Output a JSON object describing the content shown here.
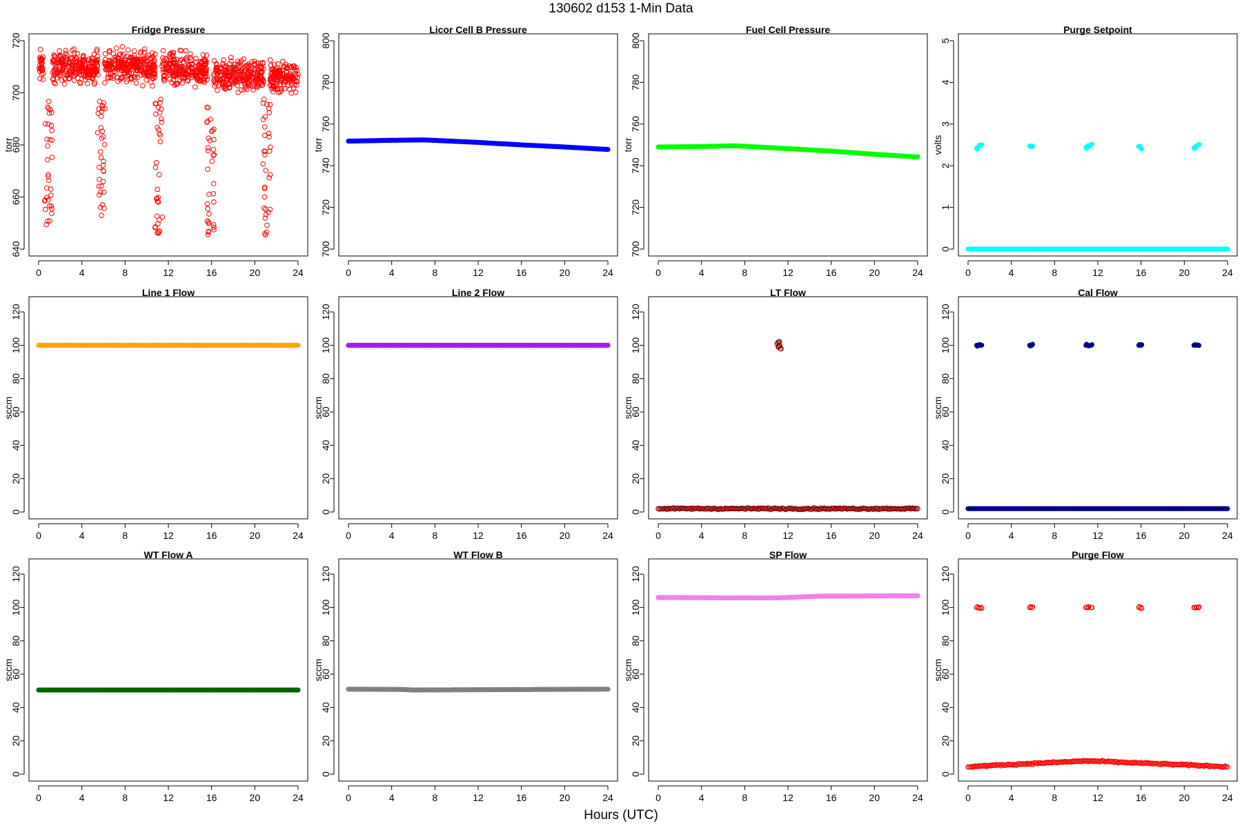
{
  "title": "130602   d153   1-Min Data",
  "xlabel": "Hours (UTC)",
  "chart_data": [
    {
      "type": "scatter",
      "title": "Fridge Pressure",
      "ylabel": "torr",
      "color": "#ff0000",
      "style": "open",
      "xlim": [
        0,
        24
      ],
      "ylim": [
        640,
        720
      ],
      "xticks": [
        0,
        4,
        8,
        12,
        16,
        20,
        24
      ],
      "yticks": [
        640,
        660,
        680,
        700,
        720
      ],
      "pattern": "fridge",
      "series": [
        {
          "name": "",
          "x": [],
          "y": []
        }
      ]
    },
    {
      "type": "scatter",
      "title": "Licor Cell B Pressure",
      "ylabel": "torr",
      "color": "#0000ff",
      "style": "filled",
      "xlim": [
        0,
        24
      ],
      "ylim": [
        700,
        800
      ],
      "xticks": [
        0,
        4,
        8,
        12,
        16,
        20,
        24
      ],
      "yticks": [
        700,
        720,
        740,
        760,
        780,
        800
      ],
      "series": [
        {
          "name": "",
          "x": [
            0,
            4,
            7,
            12,
            16,
            20,
            24
          ],
          "y": [
            751.8,
            752.2,
            752.4,
            751.2,
            750,
            749,
            747.8
          ]
        }
      ]
    },
    {
      "type": "scatter",
      "title": "Fuel Cell Pressure",
      "ylabel": "torr",
      "color": "#00ff00",
      "style": "filled",
      "xlim": [
        0,
        24
      ],
      "ylim": [
        700,
        800
      ],
      "xticks": [
        0,
        4,
        8,
        12,
        16,
        20,
        24
      ],
      "yticks": [
        700,
        720,
        740,
        760,
        780,
        800
      ],
      "series": [
        {
          "name": "",
          "x": [
            0,
            4,
            7,
            12,
            16,
            20,
            24
          ],
          "y": [
            749,
            749.2,
            749.6,
            748.2,
            747,
            745.5,
            744.2
          ]
        }
      ]
    },
    {
      "type": "scatter",
      "title": "Purge Setpoint",
      "ylabel": "volts",
      "color": "#00ffff",
      "style": "filled",
      "xlim": [
        0,
        24
      ],
      "ylim": [
        0,
        5
      ],
      "xticks": [
        0,
        4,
        8,
        12,
        16,
        20,
        24
      ],
      "yticks": [
        0,
        1,
        2,
        3,
        4,
        5
      ],
      "series": [
        {
          "name": "",
          "x": [
            0,
            24
          ],
          "y": [
            0,
            0
          ]
        },
        {
          "name": "",
          "x": [
            0.8,
            1.0,
            1.2,
            5.7,
            5.9,
            10.9,
            11.1,
            11.4,
            15.8,
            16.0,
            20.9,
            21.1,
            21.3
          ],
          "y": [
            2.42,
            2.47,
            2.5,
            2.47,
            2.45,
            2.44,
            2.48,
            2.5,
            2.46,
            2.42,
            2.43,
            2.47,
            2.5
          ]
        }
      ]
    },
    {
      "type": "scatter",
      "title": "Line 1 Flow",
      "ylabel": "sccm",
      "color": "#ffa500",
      "style": "filled",
      "xlim": [
        0,
        24
      ],
      "ylim": [
        0,
        125
      ],
      "xticks": [
        0,
        4,
        8,
        12,
        16,
        20,
        24
      ],
      "yticks": [
        0,
        20,
        40,
        60,
        80,
        100,
        120
      ],
      "series": [
        {
          "name": "",
          "x": [
            0,
            24
          ],
          "y": [
            100,
            100
          ]
        }
      ]
    },
    {
      "type": "scatter",
      "title": "Line 2 Flow",
      "ylabel": "sccm",
      "color": "#a020f0",
      "style": "filled",
      "xlim": [
        0,
        24
      ],
      "ylim": [
        0,
        125
      ],
      "xticks": [
        0,
        4,
        8,
        12,
        16,
        20,
        24
      ],
      "yticks": [
        0,
        20,
        40,
        60,
        80,
        100,
        120
      ],
      "series": [
        {
          "name": "",
          "x": [
            0,
            24
          ],
          "y": [
            100,
            100
          ]
        }
      ]
    },
    {
      "type": "scatter",
      "title": "LT Flow",
      "ylabel": "sccm",
      "color": "#8b0000",
      "style": "open",
      "xlim": [
        0,
        24
      ],
      "ylim": [
        0,
        125
      ],
      "xticks": [
        0,
        4,
        8,
        12,
        16,
        20,
        24
      ],
      "yticks": [
        0,
        20,
        40,
        60,
        80,
        100,
        120
      ],
      "series": [
        {
          "name": "",
          "x": [
            0,
            24
          ],
          "y": [
            2,
            2
          ]
        },
        {
          "name": "",
          "x": [
            11.0,
            11.1,
            11.2,
            11.3,
            11.15
          ],
          "y": [
            101,
            99,
            100,
            98,
            102
          ]
        }
      ]
    },
    {
      "type": "scatter",
      "title": "Cal Flow",
      "ylabel": "sccm",
      "color": "#00008b",
      "style": "filled",
      "xlim": [
        0,
        24
      ],
      "ylim": [
        0,
        125
      ],
      "xticks": [
        0,
        4,
        8,
        12,
        16,
        20,
        24
      ],
      "yticks": [
        0,
        20,
        40,
        60,
        80,
        100,
        120
      ],
      "series": [
        {
          "name": "",
          "x": [
            0,
            24
          ],
          "y": [
            2,
            2
          ]
        },
        {
          "name": "",
          "x": [
            0.8,
            1.0,
            1.2,
            5.7,
            5.9,
            10.9,
            11.1,
            11.4,
            15.8,
            16.0,
            20.9,
            21.1,
            21.3
          ],
          "y": [
            100,
            100,
            100,
            100,
            100,
            100,
            100,
            100,
            100,
            100,
            100,
            100,
            100
          ]
        }
      ]
    },
    {
      "type": "scatter",
      "title": "WT Flow A",
      "ylabel": "sccm",
      "color": "#006400",
      "style": "filled",
      "xlim": [
        0,
        24
      ],
      "ylim": [
        0,
        125
      ],
      "xticks": [
        0,
        4,
        8,
        12,
        16,
        20,
        24
      ],
      "yticks": [
        0,
        20,
        40,
        60,
        80,
        100,
        120
      ],
      "series": [
        {
          "name": "",
          "x": [
            0,
            24
          ],
          "y": [
            50.5,
            50.5
          ]
        }
      ]
    },
    {
      "type": "scatter",
      "title": "WT Flow B",
      "ylabel": "sccm",
      "color": "#808080",
      "style": "filled",
      "xlim": [
        0,
        24
      ],
      "ylim": [
        0,
        125
      ],
      "xticks": [
        0,
        4,
        8,
        12,
        16,
        20,
        24
      ],
      "yticks": [
        0,
        20,
        40,
        60,
        80,
        100,
        120
      ],
      "series": [
        {
          "name": "",
          "x": [
            0,
            5,
            6,
            24
          ],
          "y": [
            51,
            50.8,
            50.5,
            51
          ]
        }
      ]
    },
    {
      "type": "scatter",
      "title": "SP Flow",
      "ylabel": "sccm",
      "color": "#ee82ee",
      "style": "filled",
      "xlim": [
        0,
        24
      ],
      "ylim": [
        0,
        125
      ],
      "xticks": [
        0,
        4,
        8,
        12,
        16,
        20,
        24
      ],
      "yticks": [
        0,
        20,
        40,
        60,
        80,
        100,
        120
      ],
      "series": [
        {
          "name": "",
          "x": [
            0,
            6,
            11,
            12,
            15,
            24
          ],
          "y": [
            106,
            105.8,
            105.8,
            106,
            106.8,
            107
          ]
        }
      ]
    },
    {
      "type": "scatter",
      "title": "Purge Flow",
      "ylabel": "sccm",
      "color": "#ff0000",
      "style": "open",
      "xlim": [
        0,
        24
      ],
      "ylim": [
        0,
        125
      ],
      "xticks": [
        0,
        4,
        8,
        12,
        16,
        20,
        24
      ],
      "yticks": [
        0,
        20,
        40,
        60,
        80,
        100,
        120
      ],
      "series": [
        {
          "name": "",
          "x": [
            0,
            11,
            24
          ],
          "y": [
            4.5,
            8,
            4.5
          ]
        },
        {
          "name": "",
          "x": [
            0.8,
            1.0,
            1.2,
            5.7,
            5.9,
            10.9,
            11.1,
            11.4,
            15.8,
            16.0,
            20.9,
            21.1,
            21.3
          ],
          "y": [
            100,
            100,
            100,
            100,
            100,
            100,
            100,
            100,
            100,
            100,
            100,
            100,
            100
          ]
        }
      ]
    }
  ]
}
